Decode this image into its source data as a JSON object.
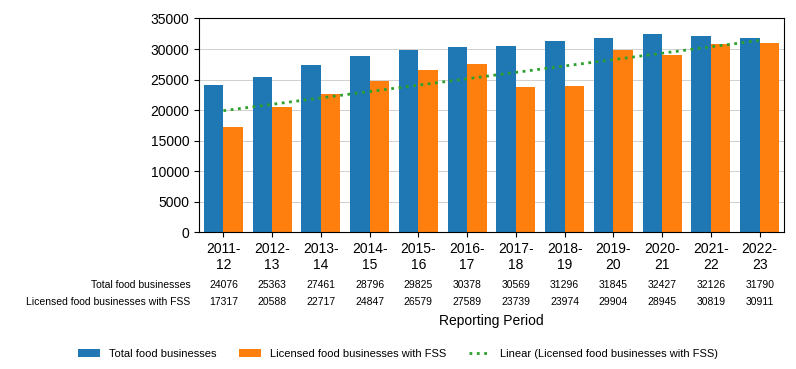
{
  "chart_data": {
    "type": "bar",
    "categories": [
      "2011-\n12",
      "2012-\n13",
      "2013-\n14",
      "2014-\n15",
      "2015-\n16",
      "2016-\n17",
      "2017-\n18",
      "2018-\n19",
      "2019-\n20",
      "2020-\n21",
      "2021-\n22",
      "2022-\n23"
    ],
    "series": [
      {
        "name": "Total food businesses",
        "values": [
          24076,
          25363,
          27461,
          28796,
          29825,
          30378,
          30569,
          31296,
          31845,
          32427,
          32126,
          31790
        ]
      },
      {
        "name": "Licensed food businesses with FSS",
        "values": [
          17317,
          20588,
          22717,
          24847,
          26579,
          27589,
          23739,
          23974,
          29904,
          28945,
          30819,
          30911
        ]
      },
      {
        "name": "Linear (Licensed food businesses with FSS)",
        "type": "line",
        "line_style": "dotted",
        "values": [
          19914.04,
          20958.9,
          22003.75,
          23048.61,
          24093.47,
          25138.32,
          26183.18,
          27228.03,
          28272.89,
          29317.75,
          30362.6,
          31407.46
        ]
      }
    ],
    "xlabel": "Reporting Period",
    "ylim": [
      0,
      35000
    ],
    "yticks": [
      0,
      5000,
      10000,
      15000,
      20000,
      25000,
      30000,
      35000
    ],
    "grid": true,
    "legend": "lower center",
    "data_labels": true
  }
}
